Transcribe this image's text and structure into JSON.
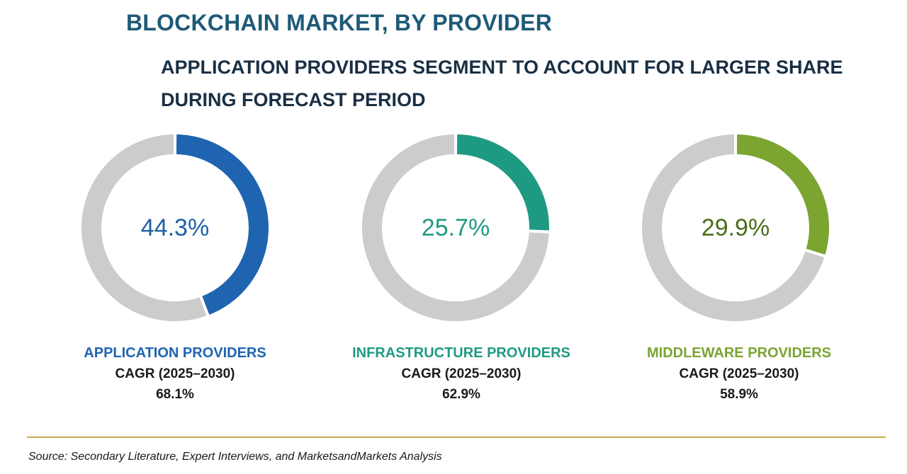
{
  "title": "BLOCKCHAIN MARKET, BY PROVIDER",
  "subtitle": "APPLICATION PROVIDERS SEGMENT TO ACCOUNT FOR LARGER SHARE DURING FORECAST PERIOD",
  "source": "Source: Secondary Literature, Expert Interviews, and MarketsandMarkets Analysis",
  "track_color": "#cccccc",
  "chart_data": [
    {
      "type": "pie",
      "name": "APPLICATION PROVIDERS",
      "share_percent": 44.3,
      "share_label": "44.3%",
      "cagr_label": "CAGR (2025–2030)",
      "cagr_value": "68.1%",
      "color": "#1f64b0",
      "label_color": "#1f5fa8"
    },
    {
      "type": "pie",
      "name": "INFRASTRUCTURE PROVIDERS",
      "share_percent": 25.7,
      "share_label": "25.7%",
      "cagr_label": "CAGR (2025–2030)",
      "cagr_value": "62.9%",
      "color": "#1f9a82",
      "label_color": "#1f9a82"
    },
    {
      "type": "pie",
      "name": "MIDDLEWARE PROVIDERS",
      "share_percent": 29.9,
      "share_label": "29.9%",
      "cagr_label": "CAGR (2025–2030)",
      "cagr_value": "58.9%",
      "color": "#7ba431",
      "label_color": "#4a6e1a"
    }
  ]
}
